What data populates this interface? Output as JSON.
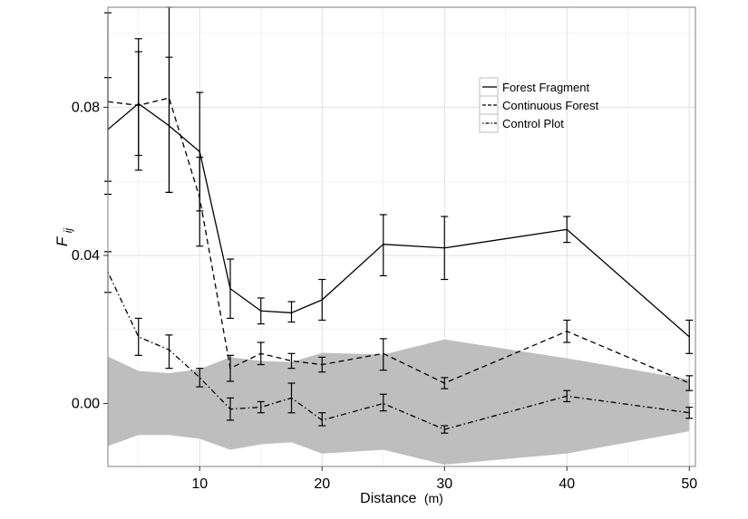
{
  "chart_data": {
    "type": "line",
    "xlabel": "Distance",
    "xlabel_unit": "(m)",
    "ylabel_main": "F",
    "ylabel_sub": "ij",
    "xlim": [
      2.5,
      50.5
    ],
    "ylim": [
      -0.017,
      0.107
    ],
    "x_ticks": [
      10,
      20,
      30,
      40,
      50
    ],
    "x_tick_labels": [
      "10",
      "20",
      "30",
      "40",
      "50"
    ],
    "y_ticks": [
      0.0,
      0.04,
      0.08
    ],
    "y_tick_labels": [
      "0.00",
      "0.04",
      "0.08"
    ],
    "grid": true,
    "legend_position": "top-right",
    "envelope": {
      "x": [
        2.5,
        5,
        7.5,
        10,
        12.5,
        15,
        17.5,
        20,
        25,
        30,
        40,
        50
      ],
      "upper": [
        0.0127,
        0.0088,
        0.0082,
        0.0093,
        0.0125,
        0.0115,
        0.0112,
        0.0137,
        0.0132,
        0.0173,
        0.0122,
        0.0065
      ],
      "lower": [
        -0.0115,
        -0.0085,
        -0.0085,
        -0.0095,
        -0.0125,
        -0.011,
        -0.0105,
        -0.0135,
        -0.0125,
        -0.0165,
        -0.0135,
        -0.0075
      ]
    },
    "series": [
      {
        "name": "Forest Fragment",
        "dash": "solid",
        "x": [
          2.5,
          5,
          7.5,
          10,
          12.5,
          15,
          17.5,
          20,
          25,
          30,
          40,
          50
        ],
        "y": [
          0.074,
          0.081,
          0.075,
          0.068,
          0.031,
          0.025,
          0.0245,
          0.028,
          0.043,
          0.042,
          0.047,
          0.018
        ],
        "err_low": [
          0.06,
          0.067,
          0.057,
          0.052,
          0.023,
          0.0215,
          0.022,
          0.0225,
          0.0345,
          0.0335,
          0.0435,
          0.0135
        ],
        "err_high": [
          0.088,
          0.095,
          0.0935,
          0.084,
          0.039,
          0.0285,
          0.0275,
          0.0335,
          0.051,
          0.0505,
          0.0505,
          0.0225
        ]
      },
      {
        "name": "Continuous Forest",
        "dash": "dashed",
        "x": [
          2.5,
          5,
          7.5,
          10,
          12.5,
          15,
          17.5,
          20,
          25,
          30,
          40,
          50
        ],
        "y": [
          0.0815,
          0.0805,
          0.0825,
          0.0555,
          0.0095,
          0.0135,
          0.0115,
          0.0105,
          0.0135,
          0.0055,
          0.0195,
          0.0055
        ],
        "err_low": [
          0.0565,
          0.063,
          0.057,
          0.0425,
          0.006,
          0.0105,
          0.0095,
          0.0085,
          0.009,
          0.004,
          0.0165,
          0.0035
        ],
        "err_high": [
          0.1055,
          0.0985,
          0.107,
          0.0665,
          0.013,
          0.0165,
          0.0135,
          0.0125,
          0.0175,
          0.007,
          0.0225,
          0.0075
        ]
      },
      {
        "name": "Control Plot",
        "dash": "dotdash",
        "x": [
          2.5,
          5,
          7.5,
          10,
          12.5,
          15,
          17.5,
          20,
          25,
          30,
          40,
          50
        ],
        "y": [
          0.0355,
          0.018,
          0.0145,
          0.007,
          -0.0015,
          -0.001,
          0.0015,
          -0.0045,
          0.0,
          -0.007,
          0.002,
          -0.0025
        ],
        "err_low": [
          0.03,
          0.013,
          0.0095,
          0.0045,
          -0.0045,
          -0.0025,
          -0.0025,
          -0.006,
          -0.002,
          -0.008,
          0.0005,
          -0.004
        ],
        "err_high": [
          0.041,
          0.023,
          0.0185,
          0.0095,
          0.0015,
          0.0005,
          0.0055,
          -0.0025,
          0.0025,
          -0.006,
          0.0035,
          -0.001
        ]
      }
    ]
  },
  "colors": {
    "envelope": "#bebebe",
    "grid": "#ebebeb",
    "frame": "#7f7f7f",
    "line": "#000000"
  }
}
